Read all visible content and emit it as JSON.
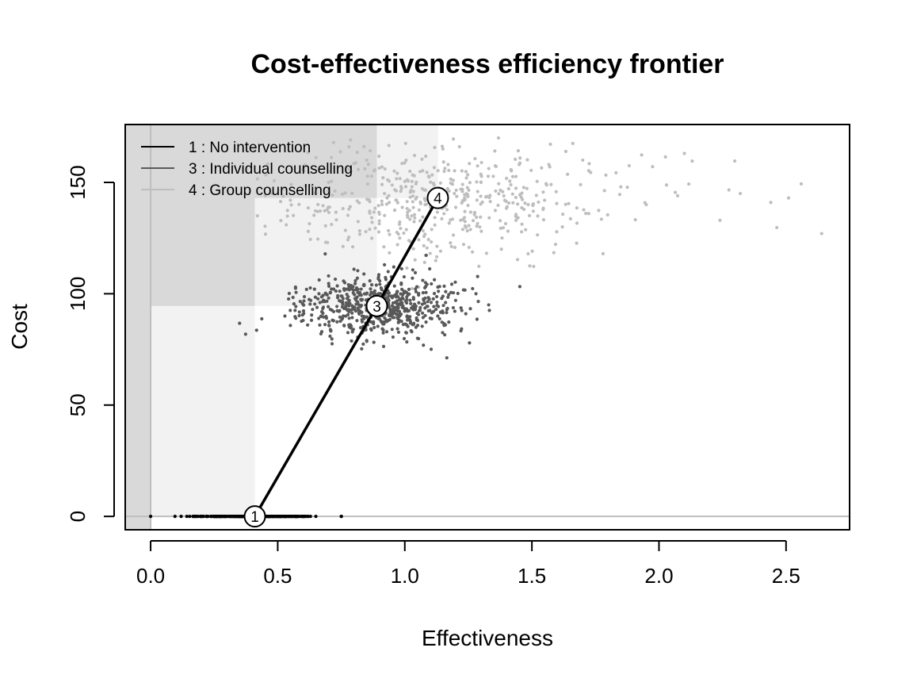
{
  "chart_data": {
    "type": "scatter",
    "title": "Cost-effectiveness efficiency frontier",
    "xlabel": "Effectiveness",
    "ylabel": "Cost",
    "xlim": [
      -0.1,
      2.75
    ],
    "ylim": [
      -6,
      176
    ],
    "x_ticks": [
      0.0,
      0.5,
      1.0,
      1.5,
      2.0,
      2.5
    ],
    "x_tick_labels": [
      "0.0",
      "0.5",
      "1.0",
      "1.5",
      "2.0",
      "2.5"
    ],
    "y_ticks": [
      0,
      50,
      100,
      150
    ],
    "y_tick_labels": [
      "0",
      "50",
      "100",
      "150"
    ],
    "grid": false,
    "legend_position": "top-left",
    "series": [
      {
        "name": "1 : No intervention",
        "id": "1",
        "color": "#000000",
        "mean": [
          0.41,
          0.0
        ],
        "spread": [
          0.1,
          0.0
        ],
        "n_points": 300,
        "points_approx": [
          [
            0.0,
            0
          ],
          [
            0.12,
            0
          ],
          [
            0.18,
            0
          ],
          [
            0.22,
            0
          ],
          [
            0.25,
            0
          ],
          [
            0.28,
            0
          ],
          [
            0.31,
            0
          ],
          [
            0.33,
            0
          ],
          [
            0.35,
            0
          ],
          [
            0.37,
            0
          ],
          [
            0.39,
            0
          ],
          [
            0.41,
            0
          ],
          [
            0.43,
            0
          ],
          [
            0.45,
            0
          ],
          [
            0.47,
            0
          ],
          [
            0.49,
            0
          ],
          [
            0.51,
            0
          ],
          [
            0.53,
            0
          ],
          [
            0.55,
            0
          ],
          [
            0.58,
            0
          ],
          [
            0.6,
            0
          ],
          [
            0.62,
            0
          ],
          [
            0.65,
            0
          ],
          [
            0.75,
            0
          ]
        ]
      },
      {
        "name": "3 : Individual counselling",
        "id": "3",
        "color": "#595959",
        "mean": [
          0.89,
          94.5
        ],
        "spread": [
          0.16,
          7
        ],
        "n_points": 600,
        "points_approx": [
          [
            0.57,
            103
          ],
          [
            0.6,
            88
          ],
          [
            0.63,
            97
          ],
          [
            0.67,
            82
          ],
          [
            0.7,
            108
          ],
          [
            0.72,
            92
          ],
          [
            0.75,
            99
          ],
          [
            0.78,
            86
          ],
          [
            0.8,
            111
          ],
          [
            0.82,
            95
          ],
          [
            0.85,
            79
          ],
          [
            0.87,
            104
          ],
          [
            0.9,
            90
          ],
          [
            0.92,
            113
          ],
          [
            0.95,
            84
          ],
          [
            0.97,
            101
          ],
          [
            1.0,
            93
          ],
          [
            1.03,
            107
          ],
          [
            1.05,
            80
          ],
          [
            1.08,
            98
          ],
          [
            1.1,
            89
          ],
          [
            1.13,
            103
          ],
          [
            1.16,
            86
          ],
          [
            1.2,
            97
          ],
          [
            1.24,
            91
          ],
          [
            1.28,
            100
          ],
          [
            1.33,
            95
          ]
        ]
      },
      {
        "name": "4 : Group counselling",
        "id": "4",
        "color": "#bebebe",
        "mean": [
          1.13,
          143
        ],
        "spread": [
          0.35,
          12
        ],
        "n_points": 500,
        "points_approx": [
          [
            0.42,
            135
          ],
          [
            0.55,
            142
          ],
          [
            0.62,
            128
          ],
          [
            0.7,
            150
          ],
          [
            0.78,
            138
          ],
          [
            0.85,
            160
          ],
          [
            0.92,
            145
          ],
          [
            0.98,
            125
          ],
          [
            1.02,
            155
          ],
          [
            1.08,
            140
          ],
          [
            1.15,
            165
          ],
          [
            1.22,
            133
          ],
          [
            1.3,
            150
          ],
          [
            1.38,
            120
          ],
          [
            1.45,
            158
          ],
          [
            1.55,
            142
          ],
          [
            1.62,
            130
          ],
          [
            1.7,
            160
          ],
          [
            1.78,
            118
          ],
          [
            1.85,
            148
          ],
          [
            1.95,
            140
          ],
          [
            2.1,
            163
          ],
          [
            2.24,
            133
          ],
          [
            2.32,
            145
          ],
          [
            2.44,
            141
          ],
          [
            2.51,
            143
          ],
          [
            2.64,
            127
          ]
        ]
      }
    ],
    "frontier": {
      "points": [
        {
          "id": "1",
          "x": 0.41,
          "y": 0.0
        },
        {
          "id": "3",
          "x": 0.89,
          "y": 94.5
        },
        {
          "id": "4",
          "x": 1.13,
          "y": 143.0
        }
      ]
    },
    "dominance_regions": [
      {
        "x0": -0.1,
        "x1": 0.0,
        "y0": -6,
        "y1": 176,
        "shade": "#d9d9d9"
      },
      {
        "x0": 0.0,
        "x1": 0.41,
        "y0": 0,
        "y1": 176,
        "shade": "#f2f2f2"
      },
      {
        "x0": 0.0,
        "x1": 0.41,
        "y0": 94.5,
        "y1": 176,
        "shade": "#d9d9d9"
      },
      {
        "x0": 0.41,
        "x1": 0.89,
        "y0": 94.5,
        "y1": 176,
        "shade": "#f2f2f2"
      },
      {
        "x0": 0.0,
        "x1": 0.89,
        "y0": 143,
        "y1": 176,
        "shade": "#d9d9d9"
      },
      {
        "x0": 0.89,
        "x1": 1.13,
        "y0": 143,
        "y1": 176,
        "shade": "#f2f2f2"
      }
    ],
    "reference_line_y": 0
  }
}
